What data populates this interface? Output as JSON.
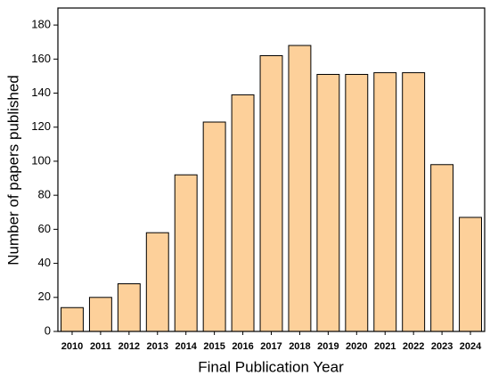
{
  "chart_data": {
    "type": "bar",
    "x_label": "Final Publication Year",
    "y_label": "Number of papers published",
    "categories": [
      "2010",
      "2011",
      "2012",
      "2013",
      "2014",
      "2015",
      "2016",
      "2017",
      "2018",
      "2019",
      "2020",
      "2021",
      "2022",
      "2023",
      "2024"
    ],
    "values": [
      14,
      20,
      28,
      58,
      92,
      123,
      139,
      162,
      168,
      151,
      151,
      152,
      152,
      98,
      67
    ],
    "color": "#fdd09a",
    "ylim": [
      0,
      190
    ],
    "yticks": [
      0,
      20,
      40,
      60,
      80,
      100,
      120,
      140,
      160,
      180
    ]
  }
}
